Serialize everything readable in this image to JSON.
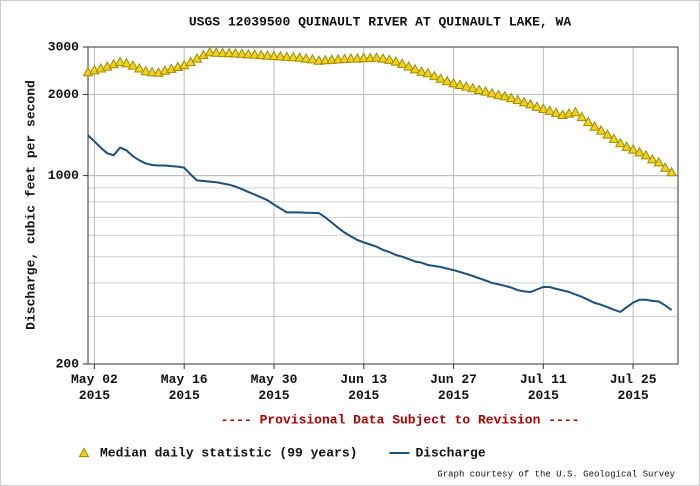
{
  "chart_data": {
    "type": "line",
    "title": "USGS 12039500 QUINAULT RIVER AT QUINAULT LAKE, WA",
    "y_label": "Discharge, cubic feet per second",
    "note": "---- Provisional Data Subject to Revision ----",
    "credit": "Graph courtesy of the U.S. Geological Survey",
    "log_y": true,
    "grid": true,
    "ylim": [
      200,
      3000
    ],
    "yticks": [
      200,
      1000,
      2000,
      3000
    ],
    "xlim": [
      "2015-05-01",
      "2015-08-01"
    ],
    "xticks": [
      {
        "value": "2015-05-02",
        "label": "May 02\n2015"
      },
      {
        "value": "2015-05-16",
        "label": "May 16\n2015"
      },
      {
        "value": "2015-05-30",
        "label": "May 30\n2015"
      },
      {
        "value": "2015-06-13",
        "label": "Jun 13\n2015"
      },
      {
        "value": "2015-06-27",
        "label": "Jun 27\n2015"
      },
      {
        "value": "2015-07-11",
        "label": "Jul 11\n2015"
      },
      {
        "value": "2015-07-25",
        "label": "Jul 25\n2015"
      }
    ],
    "x": [
      "2015-05-01",
      "2015-05-02",
      "2015-05-03",
      "2015-05-04",
      "2015-05-05",
      "2015-05-06",
      "2015-05-07",
      "2015-05-08",
      "2015-05-09",
      "2015-05-10",
      "2015-05-11",
      "2015-05-12",
      "2015-05-13",
      "2015-05-14",
      "2015-05-15",
      "2015-05-16",
      "2015-05-17",
      "2015-05-18",
      "2015-05-19",
      "2015-05-20",
      "2015-05-21",
      "2015-05-22",
      "2015-05-23",
      "2015-05-24",
      "2015-05-25",
      "2015-05-26",
      "2015-05-27",
      "2015-05-28",
      "2015-05-29",
      "2015-05-30",
      "2015-05-31",
      "2015-06-01",
      "2015-06-02",
      "2015-06-03",
      "2015-06-04",
      "2015-06-05",
      "2015-06-06",
      "2015-06-07",
      "2015-06-08",
      "2015-06-09",
      "2015-06-10",
      "2015-06-11",
      "2015-06-12",
      "2015-06-13",
      "2015-06-14",
      "2015-06-15",
      "2015-06-16",
      "2015-06-17",
      "2015-06-18",
      "2015-06-19",
      "2015-06-20",
      "2015-06-21",
      "2015-06-22",
      "2015-06-23",
      "2015-06-24",
      "2015-06-25",
      "2015-06-26",
      "2015-06-27",
      "2015-06-28",
      "2015-06-29",
      "2015-06-30",
      "2015-07-01",
      "2015-07-02",
      "2015-07-03",
      "2015-07-04",
      "2015-07-05",
      "2015-07-06",
      "2015-07-07",
      "2015-07-08",
      "2015-07-09",
      "2015-07-10",
      "2015-07-11",
      "2015-07-12",
      "2015-07-13",
      "2015-07-14",
      "2015-07-15",
      "2015-07-16",
      "2015-07-17",
      "2015-07-18",
      "2015-07-19",
      "2015-07-20",
      "2015-07-21",
      "2015-07-22",
      "2015-07-23",
      "2015-07-24",
      "2015-07-25",
      "2015-07-26",
      "2015-07-27",
      "2015-07-28",
      "2015-07-29",
      "2015-07-30",
      "2015-07-31"
    ],
    "series": [
      {
        "name": "Median daily statistic (99 years)",
        "marker": "triangle",
        "color": "#f2d21b",
        "edge_color": "#a08a00",
        "values": [
          2420,
          2460,
          2500,
          2540,
          2590,
          2640,
          2610,
          2560,
          2500,
          2440,
          2420,
          2410,
          2450,
          2490,
          2530,
          2570,
          2640,
          2720,
          2800,
          2870,
          2860,
          2850,
          2850,
          2840,
          2830,
          2820,
          2810,
          2800,
          2790,
          2780,
          2770,
          2760,
          2750,
          2740,
          2720,
          2700,
          2670,
          2680,
          2690,
          2700,
          2710,
          2720,
          2720,
          2730,
          2730,
          2740,
          2720,
          2690,
          2650,
          2600,
          2540,
          2480,
          2430,
          2400,
          2340,
          2290,
          2240,
          2200,
          2170,
          2140,
          2110,
          2080,
          2050,
          2020,
          1990,
          1970,
          1940,
          1910,
          1870,
          1840,
          1800,
          1770,
          1740,
          1710,
          1680,
          1700,
          1720,
          1650,
          1580,
          1520,
          1470,
          1420,
          1370,
          1320,
          1280,
          1250,
          1220,
          1190,
          1150,
          1120,
          1070,
          1030
        ]
      },
      {
        "name": "Discharge",
        "marker": "line",
        "color": "#1b4f7e",
        "values": [
          1410,
          1340,
          1270,
          1210,
          1190,
          1270,
          1240,
          1180,
          1140,
          1110,
          1095,
          1090,
          1090,
          1085,
          1080,
          1070,
          1010,
          960,
          955,
          950,
          945,
          935,
          925,
          910,
          890,
          870,
          850,
          830,
          810,
          780,
          755,
          730,
          730,
          730,
          728,
          727,
          726,
          700,
          670,
          640,
          615,
          595,
          577,
          565,
          555,
          545,
          530,
          520,
          508,
          500,
          490,
          480,
          475,
          466,
          462,
          458,
          452,
          446,
          439,
          432,
          424,
          416,
          408,
          400,
          395,
          390,
          384,
          376,
          372,
          370,
          378,
          386,
          386,
          380,
          375,
          370,
          362,
          355,
          346,
          337,
          332,
          325,
          318,
          312,
          325,
          338,
          346,
          346,
          343,
          341,
          330,
          317
        ]
      }
    ]
  }
}
